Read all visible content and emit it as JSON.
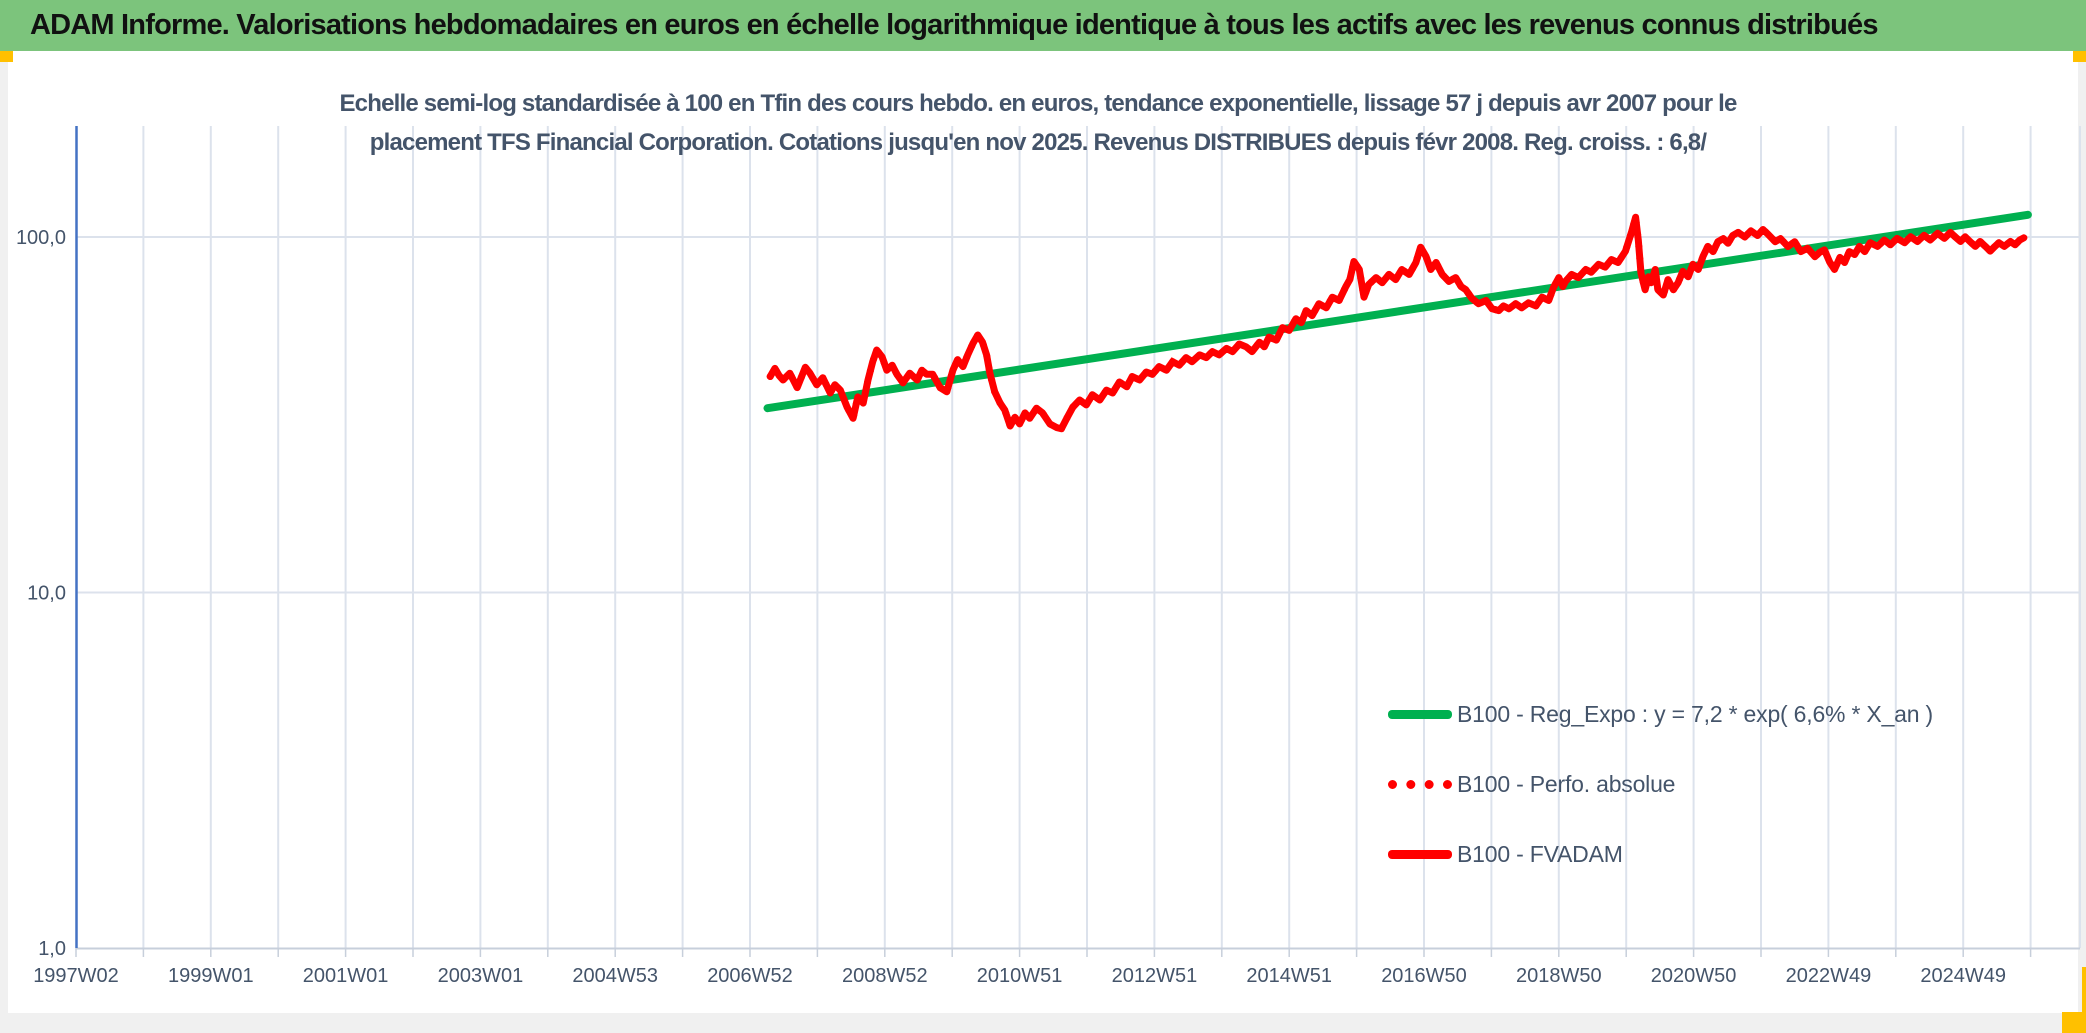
{
  "page": {
    "background": "#F0F0F0",
    "sheet_background": "#FFFFFF"
  },
  "header": {
    "title": "ADAM Informe. Valorisations hebdomadaires en euros en échelle logarithmique identique à tous les actifs avec les revenus connus distribués",
    "background_color": "#7CC47C",
    "text_color": "#111111",
    "accent_color": "#FFC000"
  },
  "chart_data": {
    "type": "line",
    "title_lines": [
      "Echelle semi-log standardisée à 100 en Tfin des cours hebdo. en euros, tendance exponentielle, lissage 57 j depuis avr 2007 pour le",
      "placement TFS Financial Corporation. Cotations jusqu'en nov 2025. Revenus DISTRIBUES depuis févr 2008. Reg. croiss. : 6,8/"
    ],
    "title_color": "#44546A",
    "y_scale": "log",
    "ylim": [
      1,
      205
    ],
    "grid": true,
    "legend_position": "inside bottom-right",
    "axis_color": "#4472C4",
    "grid_color": "#DCE2EC",
    "axis_line_color": "#C7CFDB",
    "tick_label_color": "#44546A",
    "y_ticks": [
      {
        "value": 100,
        "label": "100,0"
      },
      {
        "value": 10,
        "label": "10,0"
      },
      {
        "value": 1,
        "label": "1,0"
      }
    ],
    "x_ticks": [
      "1997W02",
      "1999W01",
      "2001W01",
      "2003W01",
      "2004W53",
      "2006W52",
      "2008W52",
      "2010W51",
      "2012W51",
      "2014W51",
      "2016W50",
      "2018W50",
      "2020W50",
      "2022W49",
      "2024W49"
    ],
    "x_tick_interval_years": 2,
    "x_range_years": [
      1997.04,
      2026.8
    ],
    "series": [
      {
        "name": "B100 - Reg_Expo : y = 7,2 * exp( 6,6% * X_an )",
        "color": "#00B050",
        "dash": "solid",
        "points": [
          [
            2007.3,
            33.0
          ],
          [
            2026.0,
            115.5
          ]
        ]
      },
      {
        "name": "B100 - Perfo. absolue",
        "color": "#FF0000",
        "dash": "dotted",
        "coincident_with": "B100 - FVADAM"
      },
      {
        "name": "B100 - FVADAM",
        "color": "#FF0000",
        "dash": "solid",
        "points": [
          [
            2007.34,
            40.5
          ],
          [
            2007.41,
            42.7
          ],
          [
            2007.47,
            40.8
          ],
          [
            2007.53,
            39.6
          ],
          [
            2007.63,
            41.4
          ],
          [
            2007.74,
            37.7
          ],
          [
            2007.86,
            43.0
          ],
          [
            2007.93,
            41.4
          ],
          [
            2008.03,
            38.4
          ],
          [
            2008.12,
            40.2
          ],
          [
            2008.23,
            36.4
          ],
          [
            2008.3,
            38.4
          ],
          [
            2008.38,
            37.1
          ],
          [
            2008.48,
            33.2
          ],
          [
            2008.57,
            30.9
          ],
          [
            2008.64,
            35.5
          ],
          [
            2008.72,
            34.1
          ],
          [
            2008.79,
            39.6
          ],
          [
            2008.86,
            44.6
          ],
          [
            2008.92,
            48.1
          ],
          [
            2009.0,
            46.0
          ],
          [
            2009.07,
            42.2
          ],
          [
            2009.15,
            43.6
          ],
          [
            2009.22,
            41.1
          ],
          [
            2009.31,
            38.9
          ],
          [
            2009.41,
            41.4
          ],
          [
            2009.52,
            39.6
          ],
          [
            2009.59,
            42.2
          ],
          [
            2009.66,
            41.1
          ],
          [
            2009.75,
            41.1
          ],
          [
            2009.86,
            37.7
          ],
          [
            2009.96,
            36.7
          ],
          [
            2010.05,
            42.2
          ],
          [
            2010.12,
            45.2
          ],
          [
            2010.2,
            43.2
          ],
          [
            2010.27,
            46.6
          ],
          [
            2010.35,
            50.3
          ],
          [
            2010.42,
            53.0
          ],
          [
            2010.49,
            50.6
          ],
          [
            2010.55,
            46.6
          ],
          [
            2010.6,
            41.4
          ],
          [
            2010.67,
            36.7
          ],
          [
            2010.75,
            34.1
          ],
          [
            2010.82,
            32.6
          ],
          [
            2010.9,
            29.4
          ],
          [
            2010.97,
            31.1
          ],
          [
            2011.04,
            29.8
          ],
          [
            2011.12,
            32.0
          ],
          [
            2011.19,
            30.9
          ],
          [
            2011.29,
            33.0
          ],
          [
            2011.38,
            32.0
          ],
          [
            2011.49,
            29.8
          ],
          [
            2011.59,
            29.1
          ],
          [
            2011.66,
            28.9
          ],
          [
            2011.74,
            30.9
          ],
          [
            2011.83,
            33.2
          ],
          [
            2011.93,
            34.8
          ],
          [
            2012.03,
            33.7
          ],
          [
            2012.12,
            36.0
          ],
          [
            2012.23,
            34.8
          ],
          [
            2012.33,
            37.1
          ],
          [
            2012.42,
            36.4
          ],
          [
            2012.52,
            39.1
          ],
          [
            2012.63,
            37.9
          ],
          [
            2012.71,
            40.5
          ],
          [
            2012.82,
            39.6
          ],
          [
            2012.92,
            41.7
          ],
          [
            2013.01,
            41.1
          ],
          [
            2013.11,
            43.2
          ],
          [
            2013.22,
            42.2
          ],
          [
            2013.31,
            44.6
          ],
          [
            2013.41,
            43.6
          ],
          [
            2013.51,
            45.8
          ],
          [
            2013.6,
            44.6
          ],
          [
            2013.71,
            46.6
          ],
          [
            2013.81,
            45.8
          ],
          [
            2013.9,
            47.6
          ],
          [
            2014.0,
            46.6
          ],
          [
            2014.11,
            48.6
          ],
          [
            2014.2,
            47.6
          ],
          [
            2014.3,
            50.0
          ],
          [
            2014.4,
            49.1
          ],
          [
            2014.49,
            47.6
          ],
          [
            2014.6,
            50.6
          ],
          [
            2014.67,
            49.1
          ],
          [
            2014.74,
            52.3
          ],
          [
            2014.85,
            51.3
          ],
          [
            2014.94,
            55.6
          ],
          [
            2015.04,
            54.6
          ],
          [
            2015.14,
            58.9
          ],
          [
            2015.22,
            57.4
          ],
          [
            2015.29,
            62.1
          ],
          [
            2015.38,
            60.1
          ],
          [
            2015.48,
            64.9
          ],
          [
            2015.59,
            63.2
          ],
          [
            2015.68,
            67.7
          ],
          [
            2015.78,
            66.3
          ],
          [
            2015.88,
            72.5
          ],
          [
            2015.94,
            76.0
          ],
          [
            2016.0,
            85.3
          ],
          [
            2016.08,
            81.0
          ],
          [
            2016.15,
            67.7
          ],
          [
            2016.22,
            73.5
          ],
          [
            2016.33,
            76.9
          ],
          [
            2016.42,
            74.4
          ],
          [
            2016.52,
            78.5
          ],
          [
            2016.62,
            75.9
          ],
          [
            2016.71,
            81.0
          ],
          [
            2016.82,
            78.5
          ],
          [
            2016.92,
            84.8
          ],
          [
            2016.99,
            93.6
          ],
          [
            2017.07,
            88.2
          ],
          [
            2017.14,
            81.0
          ],
          [
            2017.22,
            84.8
          ],
          [
            2017.31,
            78.5
          ],
          [
            2017.41,
            75.0
          ],
          [
            2017.51,
            76.9
          ],
          [
            2017.59,
            72.5
          ],
          [
            2017.66,
            71.1
          ],
          [
            2017.75,
            67.2
          ],
          [
            2017.85,
            64.9
          ],
          [
            2017.96,
            66.3
          ],
          [
            2018.05,
            62.8
          ],
          [
            2018.15,
            62.1
          ],
          [
            2018.22,
            64.0
          ],
          [
            2018.3,
            62.8
          ],
          [
            2018.4,
            64.9
          ],
          [
            2018.49,
            63.2
          ],
          [
            2018.59,
            65.3
          ],
          [
            2018.7,
            64.0
          ],
          [
            2018.79,
            67.7
          ],
          [
            2018.89,
            66.3
          ],
          [
            2018.96,
            72.0
          ],
          [
            2019.04,
            76.9
          ],
          [
            2019.1,
            72.5
          ],
          [
            2019.14,
            75.0
          ],
          [
            2019.23,
            78.5
          ],
          [
            2019.33,
            76.9
          ],
          [
            2019.44,
            81.0
          ],
          [
            2019.52,
            79.6
          ],
          [
            2019.63,
            83.8
          ],
          [
            2019.73,
            82.3
          ],
          [
            2019.82,
            86.4
          ],
          [
            2019.92,
            84.8
          ],
          [
            2020.03,
            91.3
          ],
          [
            2020.12,
            103.4
          ],
          [
            2020.18,
            113.6
          ],
          [
            2020.22,
            98.1
          ],
          [
            2020.26,
            79.1
          ],
          [
            2020.32,
            71.1
          ],
          [
            2020.37,
            77.3
          ],
          [
            2020.41,
            74.4
          ],
          [
            2020.47,
            81.0
          ],
          [
            2020.51,
            71.1
          ],
          [
            2020.59,
            68.7
          ],
          [
            2020.66,
            75.9
          ],
          [
            2020.74,
            71.1
          ],
          [
            2020.81,
            74.4
          ],
          [
            2020.88,
            80.1
          ],
          [
            2020.96,
            77.3
          ],
          [
            2021.03,
            83.8
          ],
          [
            2021.11,
            81.0
          ],
          [
            2021.18,
            88.2
          ],
          [
            2021.25,
            94.1
          ],
          [
            2021.33,
            91.0
          ],
          [
            2021.4,
            97.0
          ],
          [
            2021.48,
            99.0
          ],
          [
            2021.55,
            96.0
          ],
          [
            2021.62,
            101.0
          ],
          [
            2021.7,
            103.0
          ],
          [
            2021.8,
            100.0
          ],
          [
            2021.89,
            104.0
          ],
          [
            2021.99,
            101.0
          ],
          [
            2022.07,
            105.0
          ],
          [
            2022.14,
            102.0
          ],
          [
            2022.25,
            97.0
          ],
          [
            2022.33,
            99.0
          ],
          [
            2022.44,
            94.0
          ],
          [
            2022.54,
            97.0
          ],
          [
            2022.63,
            91.0
          ],
          [
            2022.73,
            93.0
          ],
          [
            2022.84,
            88.0
          ],
          [
            2022.91,
            90.5
          ],
          [
            2022.98,
            92.0
          ],
          [
            2023.06,
            85.0
          ],
          [
            2023.13,
            81.0
          ],
          [
            2023.21,
            87.6
          ],
          [
            2023.28,
            84.8
          ],
          [
            2023.35,
            91.0
          ],
          [
            2023.43,
            89.3
          ],
          [
            2023.5,
            94.1
          ],
          [
            2023.58,
            91.0
          ],
          [
            2023.66,
            96.4
          ],
          [
            2023.77,
            94.1
          ],
          [
            2023.87,
            98.1
          ],
          [
            2023.96,
            95.1
          ],
          [
            2024.06,
            99.1
          ],
          [
            2024.17,
            96.4
          ],
          [
            2024.26,
            100.1
          ],
          [
            2024.36,
            97.1
          ],
          [
            2024.46,
            101.1
          ],
          [
            2024.55,
            98.1
          ],
          [
            2024.66,
            102.4
          ],
          [
            2024.76,
            99.1
          ],
          [
            2024.85,
            103.0
          ],
          [
            2024.92,
            100.1
          ],
          [
            2025.0,
            97.1
          ],
          [
            2025.07,
            100.1
          ],
          [
            2025.14,
            97.1
          ],
          [
            2025.22,
            94.1
          ],
          [
            2025.29,
            97.1
          ],
          [
            2025.37,
            94.1
          ],
          [
            2025.44,
            91.3
          ],
          [
            2025.51,
            94.1
          ],
          [
            2025.57,
            96.4
          ],
          [
            2025.65,
            94.1
          ],
          [
            2025.74,
            97.1
          ],
          [
            2025.81,
            95.1
          ],
          [
            2025.88,
            98.1
          ],
          [
            2025.94,
            99.5
          ]
        ]
      }
    ]
  }
}
